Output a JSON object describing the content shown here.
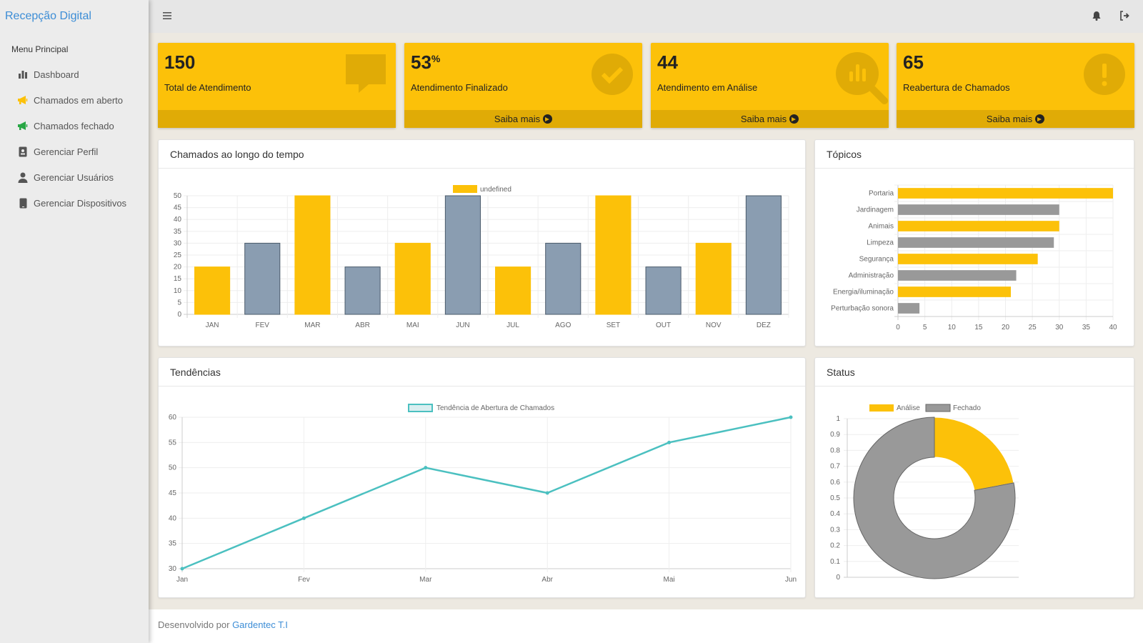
{
  "app": {
    "brand": "Recepção Digital"
  },
  "sidebar": {
    "menu_header": "Menu Principal",
    "items": [
      {
        "label": "Dashboard",
        "icon": "bar-chart-icon",
        "color": "#555555"
      },
      {
        "label": "Chamados em aberto",
        "icon": "megaphone-icon",
        "color": "#fcc109"
      },
      {
        "label": "Chamados fechado",
        "icon": "megaphone-icon",
        "color": "#28a745"
      },
      {
        "label": "Gerenciar Perfil",
        "icon": "id-badge-icon",
        "color": "#555555"
      },
      {
        "label": "Gerenciar Usuários",
        "icon": "user-icon",
        "color": "#555555"
      },
      {
        "label": "Gerenciar Dispositivos",
        "icon": "mobile-icon",
        "color": "#555555"
      }
    ]
  },
  "topbar": {
    "menu_icon": "hamburger-icon",
    "right_icons": [
      "bell-icon",
      "sign-out-icon"
    ]
  },
  "stats": [
    {
      "value": "150",
      "suffix": "",
      "label": "Total de Atendimento",
      "icon": "comment-icon",
      "footer": ""
    },
    {
      "value": "53",
      "suffix": "%",
      "label": "Atendimento Finalizado",
      "icon": "check-circle-icon",
      "footer": "Saiba mais"
    },
    {
      "value": "44",
      "suffix": "",
      "label": "Atendimento em Análise",
      "icon": "search-chart-icon",
      "footer": "Saiba mais"
    },
    {
      "value": "65",
      "suffix": "",
      "label": "Reabertura de Chamados",
      "icon": "exclamation-circle-icon",
      "footer": "Saiba mais"
    }
  ],
  "cards": {
    "bar_title": "Chamados ao longo do tempo",
    "hbar_title": "Tópicos",
    "line_title": "Tendências",
    "donut_title": "Status"
  },
  "footer": {
    "text": "Desenvolvido por ",
    "link": "Gardentec T.I"
  },
  "chart_data": [
    {
      "type": "bar",
      "legend": "undefined",
      "categories": [
        "JAN",
        "FEV",
        "MAR",
        "ABR",
        "MAI",
        "JUN",
        "JUL",
        "AGO",
        "SET",
        "OUT",
        "NOV",
        "DEZ"
      ],
      "values": [
        20,
        30,
        50,
        20,
        30,
        50,
        20,
        30,
        50,
        20,
        30,
        50
      ],
      "colors": [
        "#fcc109",
        "#8a9db1"
      ],
      "yticks": [
        0,
        5,
        10,
        15,
        20,
        25,
        30,
        35,
        40,
        45,
        50
      ],
      "ylim": [
        0,
        50
      ]
    },
    {
      "type": "bar",
      "orientation": "horizontal",
      "categories": [
        "Portaria",
        "Jardinagem",
        "Animais",
        "Limpeza",
        "Segurança",
        "Administração",
        "Energia/iluminação",
        "Perturbação sonora"
      ],
      "values": [
        40,
        30,
        30,
        29,
        26,
        22,
        21,
        4
      ],
      "colors": [
        "#fcc109",
        "#999999"
      ],
      "xticks": [
        0,
        5,
        10,
        15,
        20,
        25,
        30,
        35,
        40
      ],
      "xlim": [
        0,
        40
      ]
    },
    {
      "type": "line",
      "legend": "Tendência de Abertura de Chamados",
      "categories": [
        "Jan",
        "Fev",
        "Mar",
        "Abr",
        "Mai",
        "Jun"
      ],
      "values": [
        30,
        40,
        50,
        45,
        55,
        60
      ],
      "color": "#4bc0c0",
      "yticks": [
        30,
        35,
        40,
        45,
        50,
        55,
        60
      ],
      "ylim": [
        30,
        60
      ]
    },
    {
      "type": "pie",
      "donut": true,
      "labels": [
        "Análise",
        "Fechado"
      ],
      "values": [
        22,
        78
      ],
      "colors": [
        "#fcc109",
        "#999999"
      ],
      "yticks": [
        "0",
        "0.1",
        "0.2",
        "0.3",
        "0.4",
        "0.5",
        "0.6",
        "0.7",
        "0.8",
        "0.9",
        "1"
      ]
    }
  ]
}
